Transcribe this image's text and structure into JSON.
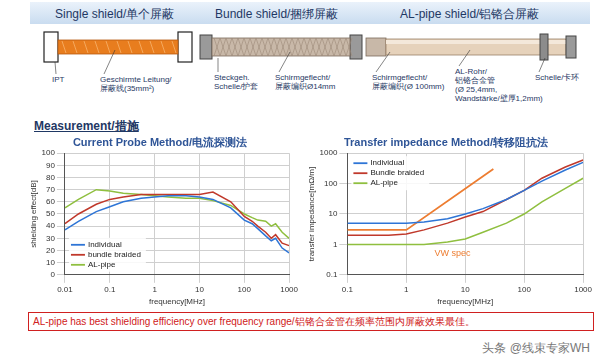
{
  "header": {
    "panels": [
      {
        "title": "Single shield/单个屏蔽",
        "labels": [
          [
            "IPT"
          ],
          [
            "Geschirmte Leitung/",
            "屏蔽线(35mm²)"
          ]
        ]
      },
      {
        "title": "Bundle shield/捆绑屏蔽",
        "labels": [
          [
            "Steckgeh.",
            "Schelle/护套"
          ],
          [
            "Schirmgeflecht/",
            "屏蔽编织Ø14mm"
          ]
        ]
      },
      {
        "title": "AL-pipe shield/铝铬合屏蔽",
        "labels": [
          [
            "Schirmgeflecht/",
            "屏蔽编织(Ø 100mm)"
          ],
          [
            "AL-Rohr/",
            "铝铬合金管",
            "(Ø 25,4mm,",
            "Wandstärke/壁厚1,2mm)"
          ],
          [
            "Schelle/卡环"
          ]
        ]
      }
    ]
  },
  "section_title": "Measurement/措施",
  "chart_data": [
    {
      "type": "line",
      "title": "Current Probe Method/电流探测法",
      "x_label": "frequency[MHz]",
      "y_label": "shielding effect[dB]",
      "log": "x",
      "grid": true,
      "legend": "bottom left",
      "x": [
        0.01,
        0.02,
        0.05,
        0.1,
        0.2,
        0.5,
        1,
        2,
        5,
        10,
        20,
        50,
        100,
        150,
        200,
        300,
        400,
        500,
        700,
        1000
      ],
      "xlim": [
        0.01,
        1000
      ],
      "xticks": [
        0.01,
        0.1,
        1,
        10,
        100,
        1000
      ],
      "ylim": [
        0,
        100
      ],
      "yticks": [
        0,
        10,
        20,
        30,
        40,
        50,
        60,
        70,
        80,
        90,
        100
      ],
      "series": [
        {
          "name": "Individual",
          "color": "#2e75d6",
          "values": [
            37,
            44,
            52,
            56,
            60,
            63,
            64,
            65,
            65,
            64,
            62,
            55,
            45,
            42,
            38,
            32,
            28,
            30,
            22,
            18
          ]
        },
        {
          "name": "bundle braided",
          "color": "#c0392b",
          "values": [
            42,
            50,
            58,
            62,
            64,
            66,
            66,
            66,
            66,
            66,
            68,
            60,
            48,
            44,
            40,
            35,
            30,
            33,
            26,
            24
          ]
        },
        {
          "name": "AL-pipe",
          "color": "#8fbf3f",
          "values": [
            55,
            62,
            70,
            69,
            67,
            66,
            65,
            64,
            63,
            63,
            61,
            57,
            50,
            47,
            45,
            44,
            40,
            42,
            35,
            30
          ]
        }
      ]
    },
    {
      "type": "line",
      "title": "Transfer impedance Method/转移阻抗法",
      "x_label": "frequency[MHz]",
      "y_label": "transfer impedance[mΩ/m]",
      "log": true,
      "grid": true,
      "legend": "top left",
      "x": [
        0.1,
        0.2,
        0.5,
        1,
        2,
        5,
        10,
        20,
        50,
        100,
        200,
        500,
        1000
      ],
      "xlim": [
        0.1,
        1000
      ],
      "xticks": [
        0.1,
        1,
        10,
        100,
        1000
      ],
      "ylim": [
        0.1,
        1000
      ],
      "yticks": [
        0.1,
        1,
        10,
        100,
        1000
      ],
      "series": [
        {
          "name": "Individual",
          "color": "#2e75d6",
          "values": [
            5,
            5,
            5,
            5,
            5.5,
            7,
            10,
            15,
            30,
            60,
            120,
            280,
            500
          ]
        },
        {
          "name": "Bundle braided",
          "color": "#c0392b",
          "values": [
            2,
            2,
            2,
            2.2,
            3,
            5,
            8,
            12,
            30,
            60,
            150,
            350,
            600
          ]
        },
        {
          "name": "AL-pipe",
          "color": "#8fbf3f",
          "values": [
            1,
            1,
            1,
            1,
            1,
            1.2,
            1.5,
            2.5,
            5,
            10,
            25,
            70,
            150
          ]
        }
      ],
      "annotation": {
        "text": "VW spec",
        "color": "#ed7d31",
        "x": [
          0.1,
          1,
          30
        ],
        "values": [
          3,
          3,
          300
        ],
        "label_x": 3,
        "label_y": 0.5
      }
    }
  ],
  "footer": "AL-pipe has best shielding efficiency over frequency range/铝铬合金管在频率范围内屏蔽效果最佳。",
  "watermark": "头条 @线束专家WH"
}
